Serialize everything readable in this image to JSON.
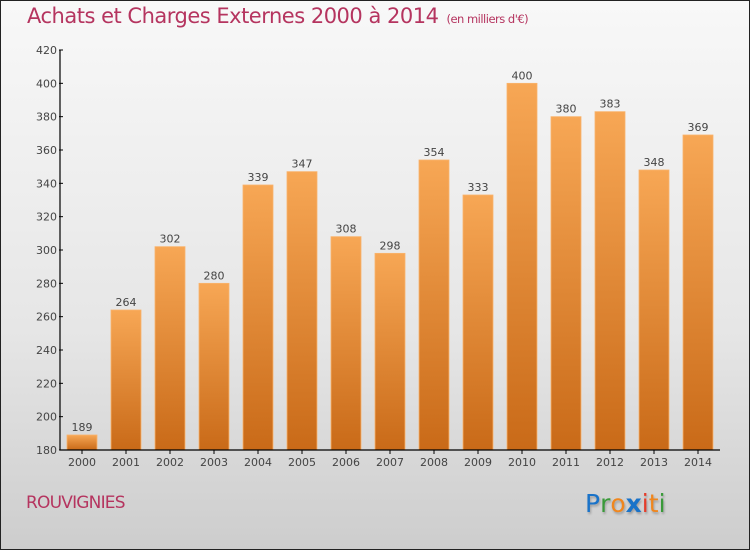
{
  "title": "Achats et Charges Externes 2000 à 2014",
  "subtitle": "(en milliers d'€)",
  "city": "ROUVIGNIES",
  "logo": {
    "letters": [
      {
        "ch": "P",
        "color": "#1a73c9"
      },
      {
        "ch": "r",
        "color": "#3a9a3a"
      },
      {
        "ch": "o",
        "color": "#f0861d"
      },
      {
        "ch": "x",
        "color": "#1a73c9"
      },
      {
        "ch": "i",
        "color": "#e53c2a"
      },
      {
        "ch": "t",
        "color": "#f0861d"
      },
      {
        "ch": "i",
        "color": "#3a9a3a"
      }
    ]
  },
  "colors": {
    "title": "#b5345f",
    "bar_top": "#f7a755",
    "bar_bottom": "#c96a18",
    "axis": "#000000",
    "label": "#444444"
  },
  "chart_data": {
    "type": "bar",
    "title": "Achats et Charges Externes 2000 à 2014",
    "subtitle": "(en milliers d'€)",
    "xlabel": "",
    "ylabel": "",
    "categories": [
      "2000",
      "2001",
      "2002",
      "2003",
      "2004",
      "2005",
      "2006",
      "2007",
      "2008",
      "2009",
      "2010",
      "2011",
      "2012",
      "2013",
      "2014"
    ],
    "values": [
      189,
      264,
      302,
      280,
      339,
      347,
      308,
      298,
      354,
      333,
      400,
      380,
      383,
      348,
      369
    ],
    "ylim": [
      180,
      420
    ],
    "yticks": [
      180,
      200,
      220,
      240,
      260,
      280,
      300,
      320,
      340,
      360,
      380,
      400,
      420
    ],
    "grid": false,
    "data_labels": true,
    "legend": "none"
  }
}
